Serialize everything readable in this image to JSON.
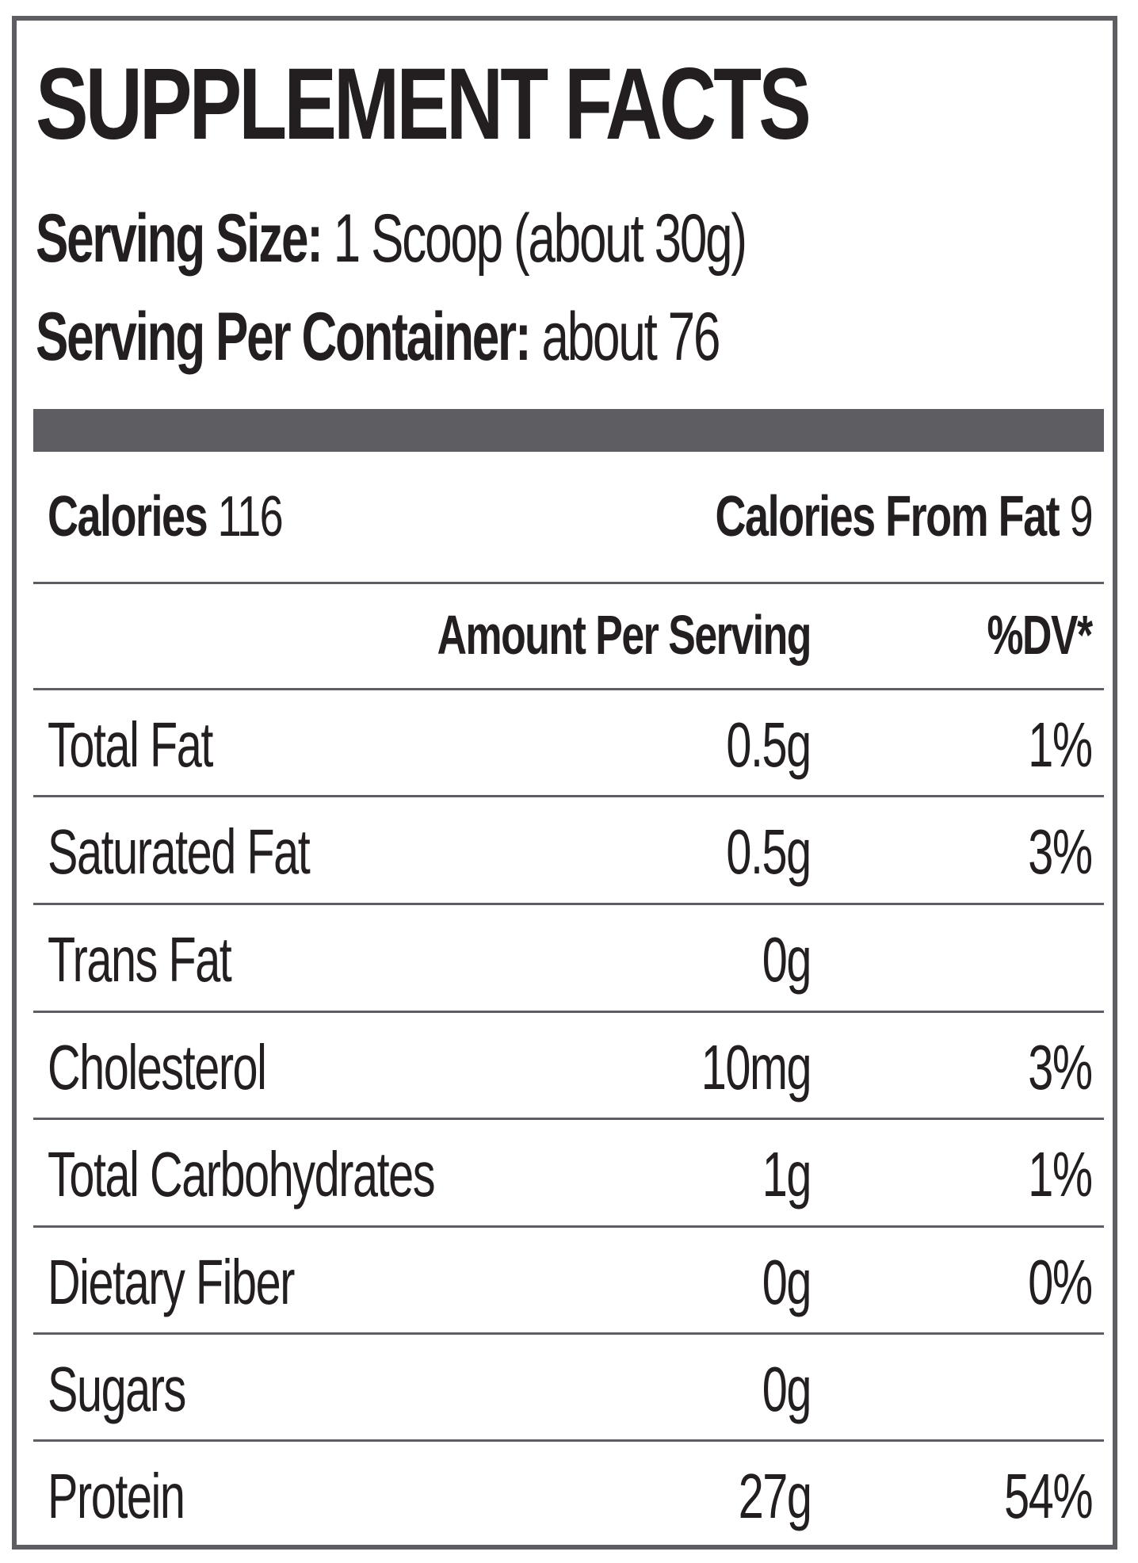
{
  "title": "SUPPLEMENT FACTS",
  "serving": {
    "size_label": "Serving Size:",
    "size_value": " 1 Scoop (about 30g)",
    "container_label": "Serving Per Container:",
    "container_value": " about 76"
  },
  "calories": {
    "label": "Calories",
    "value": " 116",
    "fat_label": "Calories From Fat",
    "fat_value": " 9"
  },
  "table": {
    "header_amount": "Amount Per Serving",
    "header_dv": "%DV*",
    "rows": [
      {
        "name": "Total Fat",
        "amount": "0.5g",
        "dv": "1%"
      },
      {
        "name": "Saturated Fat",
        "amount": "0.5g",
        "dv": "3%"
      },
      {
        "name": "Trans Fat",
        "amount": "0g",
        "dv": ""
      },
      {
        "name": "Cholesterol",
        "amount": "10mg",
        "dv": "3%"
      },
      {
        "name": "Total Carbohydrates",
        "amount": "1g",
        "dv": "1%"
      },
      {
        "name": "Dietary Fiber",
        "amount": "0g",
        "dv": "0%"
      },
      {
        "name": "Sugars",
        "amount": "0g",
        "dv": ""
      },
      {
        "name": "Protein",
        "amount": "27g",
        "dv": "54%"
      }
    ]
  },
  "colors": {
    "text": "#231f20",
    "rule": "#5d5d62",
    "background": "#ffffff"
  }
}
